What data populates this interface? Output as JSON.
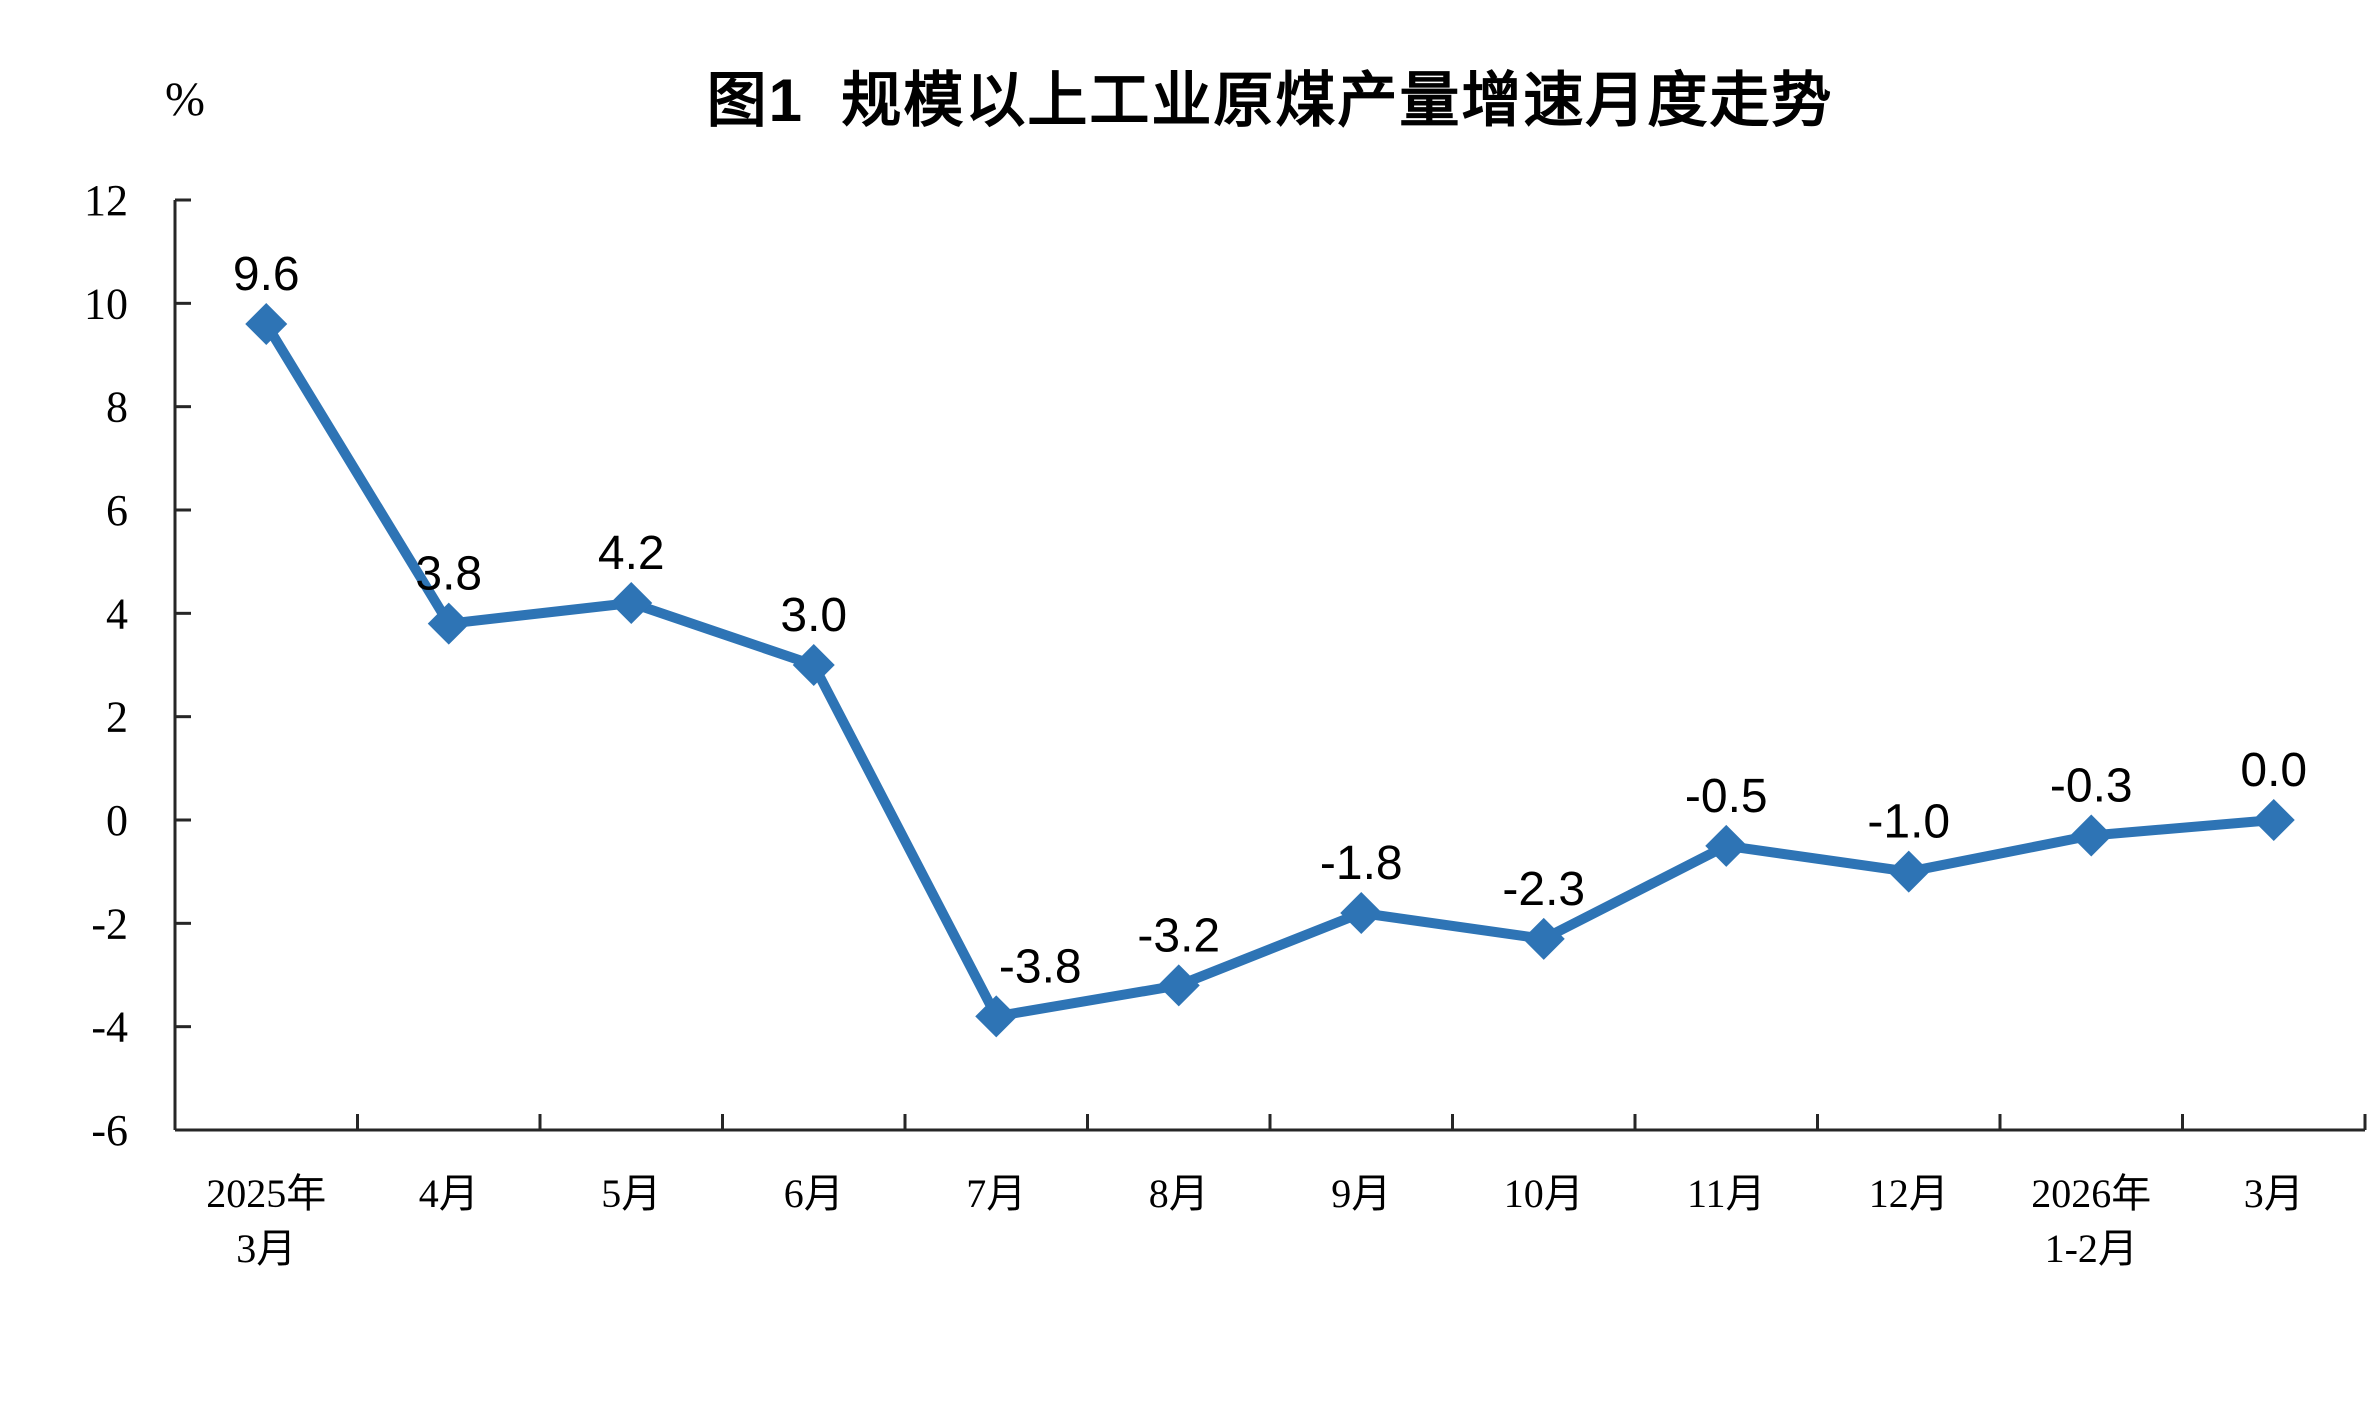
{
  "chart_data": {
    "type": "line",
    "title": "图1  规模以上工业原煤产量增速月度走势",
    "unit_label": "%",
    "categories": [
      "2025年\n3月",
      "4月",
      "5月",
      "6月",
      "7月",
      "8月",
      "9月",
      "10月",
      "11月",
      "12月",
      "2026年\n1-2月",
      "3月"
    ],
    "values": [
      9.6,
      3.8,
      4.2,
      3.0,
      -3.8,
      -3.2,
      -1.8,
      -2.3,
      -0.5,
      -1.0,
      -0.3,
      0.0
    ],
    "data_labels": [
      "9.6",
      "3.8",
      "4.2",
      "3.0",
      "-3.8",
      "-3.2",
      "-1.8",
      "-2.3",
      "-0.5",
      "-1.0",
      "-0.3",
      "0.0"
    ],
    "xlabel": "",
    "ylabel": "%",
    "ylim": [
      -6,
      12
    ],
    "ytick_step": 2,
    "ytick_labels": [
      "12",
      "10",
      "8",
      "6",
      "4",
      "2",
      "0",
      "-2",
      "-4",
      "-6"
    ],
    "grid": false,
    "legend": "none",
    "line_color": "#2E74B5",
    "marker": "diamond",
    "axis_color": "#262626",
    "text_color": "#000000",
    "background_color": "#ffffff"
  }
}
